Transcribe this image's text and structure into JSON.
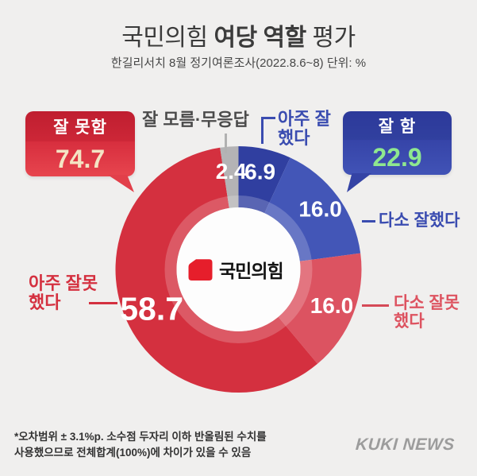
{
  "header": {
    "title_part1": "국민의힘 ",
    "title_bold": "여당 역할",
    "title_part2": " 평가",
    "subtitle": "한길리서치 8월 정기여론조사(2022.8.6~8) 단위: %"
  },
  "chart_data": {
    "type": "pie",
    "donut": true,
    "title": "국민의힘 여당 역할 평가",
    "unit": "%",
    "start_at_top_clockwise": true,
    "slices": [
      {
        "label": "아주 잘했다",
        "value": 6.9,
        "display": "6.9",
        "color": "#303fa0",
        "label_color": "#3a4cb0"
      },
      {
        "label": "다소 잘했다",
        "value": 16.0,
        "display": "16.0",
        "color": "#4356b7",
        "label_color": "#3a4cb0"
      },
      {
        "label": "다소 잘못했다",
        "value": 16.0,
        "display": "16.0",
        "color": "#dc5361",
        "label_color": "#dd5360"
      },
      {
        "label": "아주 잘못했다",
        "value": 58.7,
        "display": "58.7",
        "color": "#d4303f",
        "label_color": "#d4303f"
      },
      {
        "label": "잘 모름·무응답",
        "value": 2.4,
        "display": "2.4",
        "color": "#b4b3b5",
        "label_color": "#4b4b4b"
      }
    ],
    "groups": [
      {
        "label": "잘 못함",
        "value": 74.7,
        "display": "74.7",
        "color": "#d62c3c",
        "value_color": "#f4e4c4"
      },
      {
        "label": "잘 함",
        "value": 22.9,
        "display": "22.9",
        "color": "#3a49ae",
        "value_color": "#8fe88f"
      }
    ],
    "center_label": "국민의힘"
  },
  "footnote": "*오차범위 ± 3.1%p. 소수점 두자리 이하 반올림된 수치를\n사용했으므로 전체합계(100%)에 차이가 있을 수 있음",
  "branding": {
    "outlet": "KUKI NEWS",
    "party_color": "#e61e2b"
  }
}
